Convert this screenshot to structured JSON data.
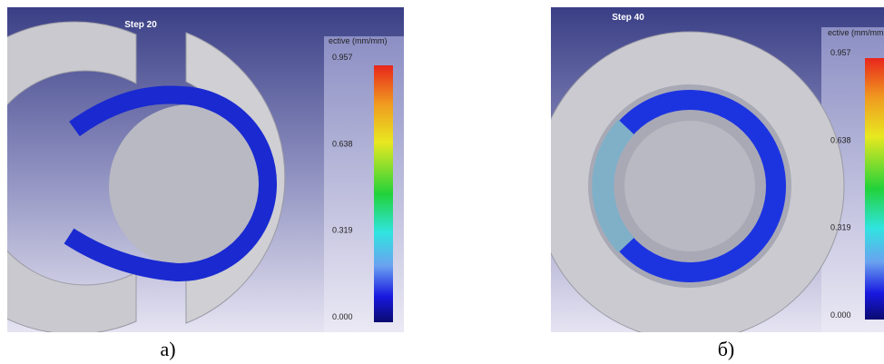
{
  "panels": [
    {
      "step": "Step  20",
      "colorbar_title": "ective (mm/mm)",
      "ticks": [
        {
          "value": 0,
          "label": "0.000"
        },
        0.319,
        0.638,
        0.957
      ],
      "caption": "а)"
    },
    {
      "step": "Step  40",
      "colorbar_title": "ective (mm/mm",
      "ticks": [
        {
          "value": 0,
          "label": "0.000"
        },
        0.319,
        0.638,
        0.957
      ],
      "caption": "б)"
    }
  ]
}
